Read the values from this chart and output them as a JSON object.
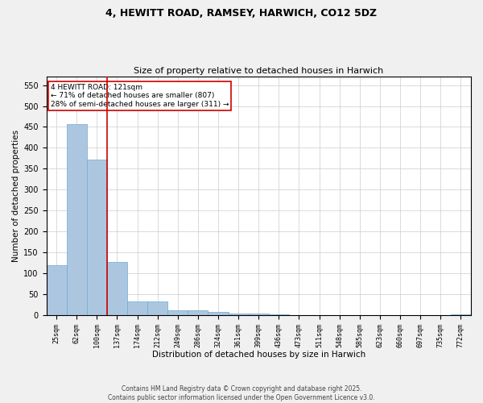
{
  "title_line1": "4, HEWITT ROAD, RAMSEY, HARWICH, CO12 5DZ",
  "title_line2": "Size of property relative to detached houses in Harwich",
  "xlabel": "Distribution of detached houses by size in Harwich",
  "ylabel": "Number of detached properties",
  "categories": [
    "25sqm",
    "62sqm",
    "100sqm",
    "137sqm",
    "174sqm",
    "212sqm",
    "249sqm",
    "286sqm",
    "324sqm",
    "361sqm",
    "399sqm",
    "436sqm",
    "473sqm",
    "511sqm",
    "548sqm",
    "585sqm",
    "623sqm",
    "660sqm",
    "697sqm",
    "735sqm",
    "772sqm"
  ],
  "values": [
    120,
    457,
    372,
    128,
    33,
    33,
    12,
    12,
    8,
    5,
    5,
    2,
    1,
    0,
    1,
    0,
    0,
    0,
    0,
    0,
    2
  ],
  "bar_color": "#adc6e0",
  "bar_edge_color": "#6aaad4",
  "grid_color": "#cccccc",
  "annotation_text": "4 HEWITT ROAD: 121sqm\n← 71% of detached houses are smaller (807)\n28% of semi-detached houses are larger (311) →",
  "annotation_box_color": "#ffffff",
  "annotation_box_edge_color": "#cc0000",
  "vline_color": "#cc0000",
  "vline_x": 2.5,
  "ylim": [
    0,
    570
  ],
  "yticks": [
    0,
    50,
    100,
    150,
    200,
    250,
    300,
    350,
    400,
    450,
    500,
    550
  ],
  "footer_line1": "Contains HM Land Registry data © Crown copyright and database right 2025.",
  "footer_line2": "Contains public sector information licensed under the Open Government Licence v3.0.",
  "bg_color": "#f0f0f0",
  "plot_bg_color": "#ffffff"
}
